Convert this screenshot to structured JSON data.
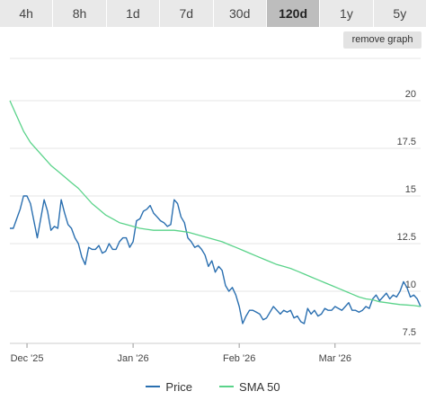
{
  "range_buttons": [
    {
      "label": "4h"
    },
    {
      "label": "8h"
    },
    {
      "label": "1d"
    },
    {
      "label": "7d"
    },
    {
      "label": "30d"
    },
    {
      "label": "120d"
    },
    {
      "label": "1y"
    },
    {
      "label": "5y"
    }
  ],
  "active_range": "120d",
  "remove_graph_label": "remove graph",
  "colors": {
    "price": "#2a6fb0",
    "sma": "#5ad38a",
    "grid": "#e6e6e6",
    "active_tab": "#bdbdbd"
  },
  "chart_data": {
    "type": "line",
    "x_tick_labels": [
      "Dec '25",
      "Jan '26",
      "Feb '26",
      "Mar '26"
    ],
    "x_tick_days": [
      5,
      36,
      67,
      95
    ],
    "y_tick_labels": [
      "20",
      "17.5",
      "15",
      "12.5",
      "10",
      "7.5"
    ],
    "ylim": [
      7.5,
      20
    ],
    "xlim": [
      0,
      120
    ],
    "grid": true,
    "legend_position": "bottom-center",
    "series": [
      {
        "name": "Price",
        "x": [
          0,
          1,
          2,
          3,
          4,
          5,
          6,
          7,
          8,
          9,
          10,
          11,
          12,
          13,
          14,
          15,
          16,
          17,
          18,
          19,
          20,
          21,
          22,
          23,
          24,
          25,
          26,
          27,
          28,
          29,
          30,
          31,
          32,
          33,
          34,
          35,
          36,
          37,
          38,
          39,
          40,
          41,
          42,
          43,
          44,
          45,
          46,
          47,
          48,
          49,
          50,
          51,
          52,
          53,
          54,
          55,
          56,
          57,
          58,
          59,
          60,
          61,
          62,
          63,
          64,
          65,
          66,
          67,
          68,
          69,
          70,
          71,
          72,
          73,
          74,
          75,
          76,
          77,
          78,
          79,
          80,
          81,
          82,
          83,
          84,
          85,
          86,
          87,
          88,
          89,
          90,
          91,
          92,
          93,
          94,
          95,
          96,
          97,
          98,
          99,
          100,
          101,
          102,
          103,
          104,
          105,
          106,
          107,
          108,
          109,
          110,
          111,
          112,
          113,
          114,
          115,
          116,
          117,
          118,
          119,
          120
        ],
        "values": [
          13.3,
          13.3,
          13.8,
          14.3,
          15.0,
          15.0,
          14.6,
          13.7,
          12.8,
          13.8,
          14.8,
          14.2,
          13.2,
          13.4,
          13.3,
          14.8,
          14.1,
          13.5,
          13.3,
          12.8,
          12.5,
          11.8,
          11.4,
          12.3,
          12.2,
          12.2,
          12.4,
          12.0,
          12.1,
          12.5,
          12.2,
          12.2,
          12.6,
          12.8,
          12.8,
          12.3,
          12.6,
          13.7,
          13.8,
          14.2,
          14.3,
          14.5,
          14.1,
          13.9,
          13.7,
          13.6,
          13.4,
          13.5,
          14.8,
          14.6,
          13.9,
          13.6,
          12.8,
          12.6,
          12.3,
          12.4,
          12.2,
          11.9,
          11.3,
          11.6,
          11.0,
          11.3,
          11.1,
          10.3,
          10.0,
          10.2,
          9.8,
          9.2,
          8.3,
          8.7,
          9.0,
          9.0,
          8.9,
          8.8,
          8.5,
          8.6,
          8.9,
          9.2,
          9.0,
          8.8,
          9.0,
          8.9,
          9.0,
          8.6,
          8.7,
          8.4,
          8.3,
          9.1,
          8.8,
          9.0,
          8.7,
          8.8,
          9.1,
          9.0,
          9.0,
          9.2,
          9.1,
          9.0,
          9.2,
          9.4,
          9.0,
          9.0,
          8.9,
          9.0,
          9.2,
          9.1,
          9.6,
          9.8,
          9.5,
          9.7,
          9.9,
          9.6,
          9.8,
          9.7,
          10.0,
          10.5,
          10.2,
          9.7,
          9.8,
          9.6,
          9.2
        ]
      },
      {
        "name": "SMA 50",
        "x": [
          0,
          2,
          4,
          6,
          8,
          10,
          12,
          14,
          16,
          18,
          20,
          22,
          24,
          26,
          28,
          30,
          32,
          34,
          36,
          38,
          40,
          42,
          44,
          46,
          48,
          50,
          52,
          54,
          56,
          58,
          60,
          62,
          64,
          66,
          68,
          70,
          72,
          74,
          76,
          78,
          80,
          82,
          84,
          86,
          88,
          90,
          92,
          94,
          96,
          98,
          100,
          102,
          104,
          106,
          108,
          110,
          112,
          114,
          116,
          118,
          120
        ],
        "values": [
          20.0,
          19.2,
          18.4,
          17.8,
          17.4,
          17.0,
          16.6,
          16.3,
          16.0,
          15.7,
          15.4,
          15.0,
          14.6,
          14.3,
          14.0,
          13.8,
          13.6,
          13.5,
          13.4,
          13.3,
          13.25,
          13.2,
          13.2,
          13.2,
          13.2,
          13.15,
          13.1,
          13.0,
          12.9,
          12.8,
          12.7,
          12.6,
          12.45,
          12.3,
          12.15,
          12.0,
          11.85,
          11.7,
          11.55,
          11.4,
          11.3,
          11.2,
          11.05,
          10.9,
          10.75,
          10.6,
          10.45,
          10.3,
          10.15,
          10.0,
          9.85,
          9.7,
          9.6,
          9.55,
          9.45,
          9.4,
          9.35,
          9.3,
          9.28,
          9.25,
          9.2
        ]
      }
    ]
  }
}
